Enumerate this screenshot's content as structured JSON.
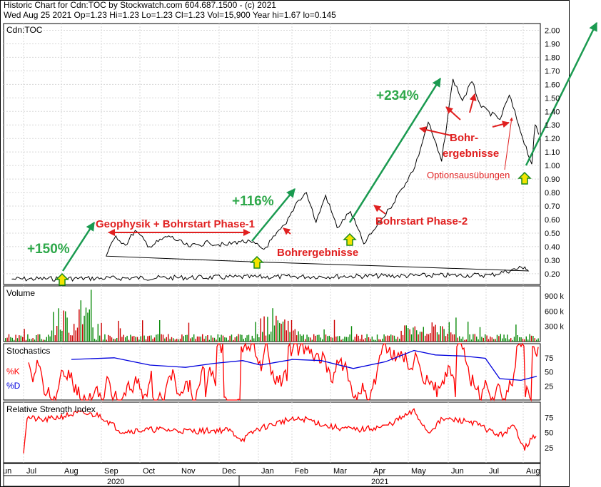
{
  "header": {
    "line1": "Historic Chart  for Cdn:TOC by Stockwatch.com 604.687.1500 - (c) 2021",
    "line2": "Wed Aug 25 2021   Op=1.23   Hi=1.23   Lo=1.23   Cl=1.23   Vol=15,900   Year hi=1.67   lo=0.145"
  },
  "chart_data": [
    {
      "type": "line",
      "title": "Cdn:TOC",
      "ylim": [
        0.12,
        2.05
      ],
      "y_ticks": [
        "0.20",
        "0.30",
        "0.40",
        "0.50",
        "0.60",
        "0.70",
        "0.80",
        "0.90",
        "1.00",
        "1.10",
        "1.20",
        "1.30",
        "1.40",
        "1.50",
        "1.60",
        "1.70",
        "1.80",
        "1.90",
        "2.00"
      ],
      "x_months": [
        "un",
        "Jul",
        "Aug",
        "Sep",
        "Oct",
        "Nov",
        "Dec",
        "Jan",
        "Feb",
        "Mar",
        "Apr",
        "May",
        "Jun",
        "Jul",
        "Aug"
      ],
      "x_years": [
        "2020",
        "2021"
      ],
      "series": [
        {
          "name": "Close",
          "points": [
            [
              "Jun",
              0.16
            ],
            [
              "Jul",
              0.19
            ],
            [
              "Aug",
              0.25
            ],
            [
              "Aug",
              0.22
            ],
            [
              "Sep",
              0.33
            ],
            [
              "Sep",
              0.48
            ],
            [
              "Sep",
              0.41
            ],
            [
              "Sep",
              0.52
            ],
            [
              "Oct",
              0.4
            ],
            [
              "Oct",
              0.48
            ],
            [
              "Nov",
              0.4
            ],
            [
              "Nov",
              0.43
            ],
            [
              "Dec",
              0.41
            ],
            [
              "Dec",
              0.44
            ],
            [
              "Dec",
              0.43
            ],
            [
              "Jan",
              0.38
            ],
            [
              "Jan",
              0.48
            ],
            [
              "Jan",
              0.57
            ],
            [
              "Feb",
              0.73
            ],
            [
              "Feb",
              0.8
            ],
            [
              "Feb",
              0.58
            ],
            [
              "Feb",
              0.78
            ],
            [
              "Mar",
              0.54
            ],
            [
              "Mar",
              0.66
            ],
            [
              "Mar",
              0.42
            ],
            [
              "Apr",
              0.55
            ],
            [
              "Apr",
              0.68
            ],
            [
              "Apr",
              0.83
            ],
            [
              "May",
              0.99
            ],
            [
              "May",
              1.32
            ],
            [
              "May",
              1.03
            ],
            [
              "Jun",
              1.64
            ],
            [
              "Jun",
              1.48
            ],
            [
              "Jun",
              1.62
            ],
            [
              "Jun",
              1.43
            ],
            [
              "Jul",
              1.34
            ],
            [
              "Jul",
              1.52
            ],
            [
              "Jul",
              1.3
            ],
            [
              "Aug",
              1.01
            ],
            [
              "Aug",
              1.3
            ],
            [
              "Aug",
              1.23
            ]
          ]
        }
      ]
    },
    {
      "type": "bar",
      "title": "Volume",
      "y_ticks": [
        "900 k",
        "600 k",
        "300 k"
      ],
      "colors": {
        "up": "#0a8a0a",
        "down": "#cc0000"
      }
    },
    {
      "type": "line",
      "title": "Stochastics",
      "series_labels": [
        "%K",
        "%D"
      ],
      "y_ticks": [
        "75",
        "50",
        "25"
      ],
      "colors": {
        "K": "#ff0000",
        "D": "#0000dd"
      }
    },
    {
      "type": "line",
      "title": "Relative Strength Index",
      "y_ticks": [
        "75",
        "50",
        "25"
      ],
      "colors": {
        "RSI": "#ff0000"
      }
    }
  ],
  "annotations": {
    "pct_150": "+150%",
    "pct_116": "+116%",
    "pct_234": "+234%",
    "geophysik": "Geophysik + Bohrstart Phase-1",
    "bohrergebnisse_1": "Bohrergebnisse",
    "bohrstart_2": "Bohrstart Phase-2",
    "bohr_line1": "Bohr-",
    "bohr_line2": "ergebnisse",
    "optionsausuebungen": "Optionsausübungen"
  },
  "colors": {
    "green_text": "#2ea84a",
    "red_text": "#e02020",
    "arrow_green": "#1a9a50",
    "arrow_red": "#e02020",
    "marker_fill": "#f2e400",
    "marker_stroke": "#1a8a1a"
  }
}
